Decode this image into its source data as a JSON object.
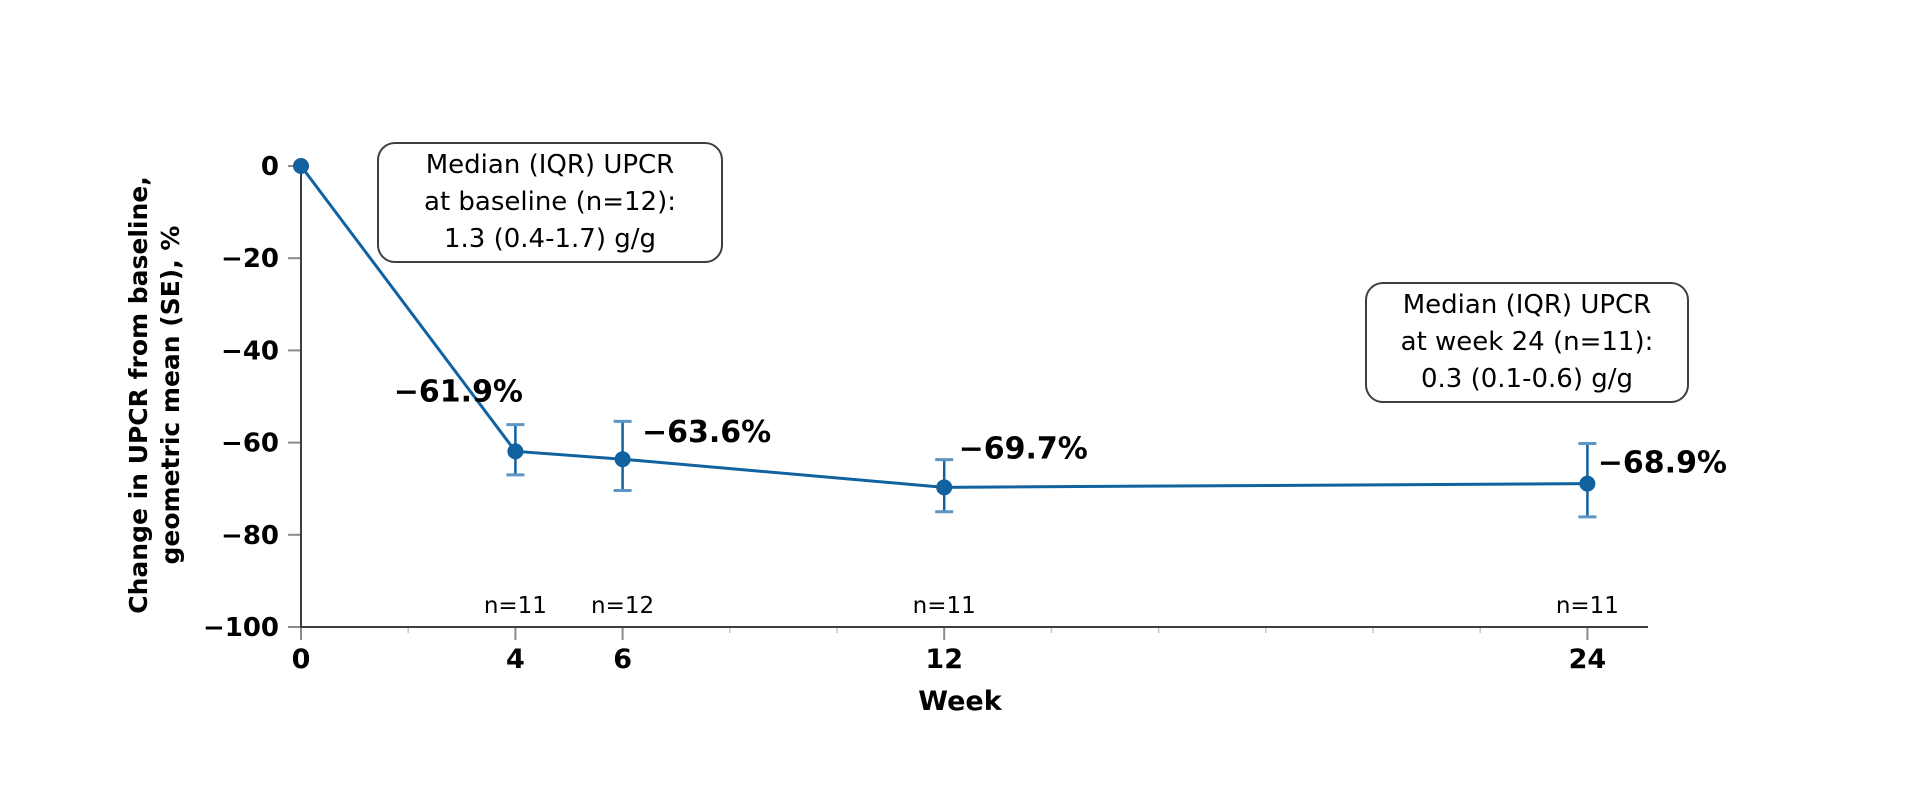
{
  "chart_data": {
    "type": "line",
    "title": "",
    "xlabel": "Week",
    "ylabel_lines": [
      "Change in UPCR from baseline,",
      "geometric mean (SE), %"
    ],
    "x": [
      0,
      4,
      6,
      12,
      24
    ],
    "series": [
      {
        "name": "Change in UPCR from baseline, geometric mean (SE)",
        "values": [
          0,
          -61.9,
          -63.6,
          -69.7,
          -68.9
        ],
        "error_upper": [
          0,
          5.8,
          8.2,
          6.0,
          8.7
        ],
        "error_lower": [
          0,
          5.1,
          6.8,
          5.3,
          7.2
        ],
        "point_labels": [
          "",
          "−61.9%",
          "−63.6%",
          "−69.7%",
          "−68.9%"
        ],
        "n_labels": [
          "",
          "n=11",
          "n=12",
          "n=11",
          "n=11"
        ]
      }
    ],
    "xticks": [
      0,
      4,
      6,
      12,
      24
    ],
    "xtick_labels": [
      "0",
      "4",
      "6",
      "12",
      "24"
    ],
    "yticks": [
      0,
      -20,
      -40,
      -60,
      -80,
      -100
    ],
    "ytick_labels": [
      "0",
      "−20",
      "−40",
      "−60",
      "−80",
      "−100"
    ],
    "xlim": [
      0,
      25
    ],
    "ylim": [
      -100,
      0
    ],
    "minor_xtick_step": 2,
    "grid": false,
    "legend_position": "none"
  },
  "annotations": [
    {
      "lines": [
        "Median (IQR) UPCR",
        "at baseline (n=12):",
        "1.3 (0.4-1.7) g/g"
      ]
    },
    {
      "lines": [
        "Median (IQR) UPCR",
        "at week 24 (n=11):",
        "0.3 (0.1-0.6) g/g"
      ]
    }
  ],
  "colors": {
    "line": "#11629F",
    "marker": "#11629F",
    "error_bar": "#11629F",
    "error_cap": "#5E95C2",
    "axis": "#3F3F3F",
    "major_tick": "#8C8C8C",
    "minor_tick": "#C4C4C4",
    "text": "#000000",
    "background": "#FFFFFF"
  }
}
